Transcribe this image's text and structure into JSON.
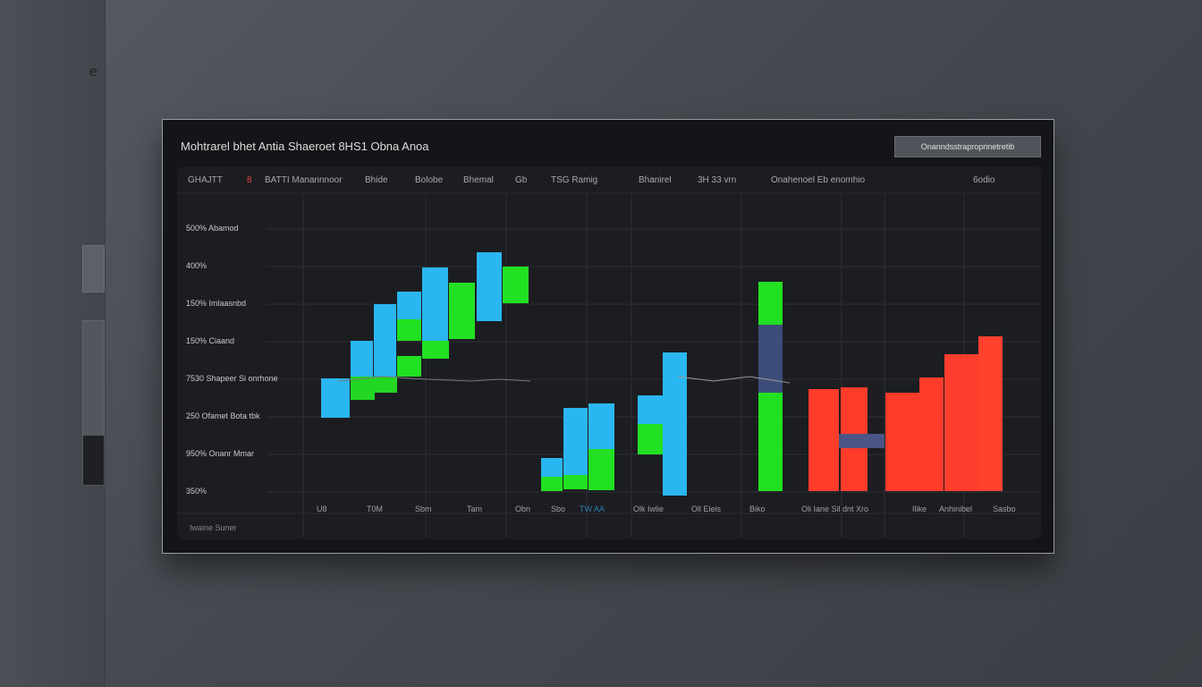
{
  "sidebar": {
    "icon": "e"
  },
  "header": {
    "title": "Mohtrarel bhet Antia Shaeroet 8HS1 Obna Anoa",
    "button": "Onanndsstraproprinetretib"
  },
  "columns": [
    "GHAJTT",
    "8",
    "BATTI Manannnoor",
    "Bhide",
    "Bolobe",
    "Bhemal",
    "Gb",
    "TSG Ramig",
    "Bhanirel",
    "3H 33 vrn",
    "Onahenoel Eb enomhio",
    "6odio"
  ],
  "y_labels": [
    "500% Abamod",
    "400%",
    "150% Imlaasnbd",
    "150% Ciaand",
    "7530 Shapeer Si onrhone",
    "250 Ofamet Bota tbk",
    "950% Onanr Mmar",
    "350%"
  ],
  "x_labels": [
    "U8",
    "T0M",
    "Sbm",
    "Tam",
    "Obn",
    "Sbo",
    "TW AA",
    "Olk Iwlie",
    "Oll Eleis",
    "Biko",
    "Oli Iane Sil dnt Xro",
    "Ilike",
    "Anhinibel",
    "Sasbo"
  ],
  "footer": "Iwaine Suner"
}
